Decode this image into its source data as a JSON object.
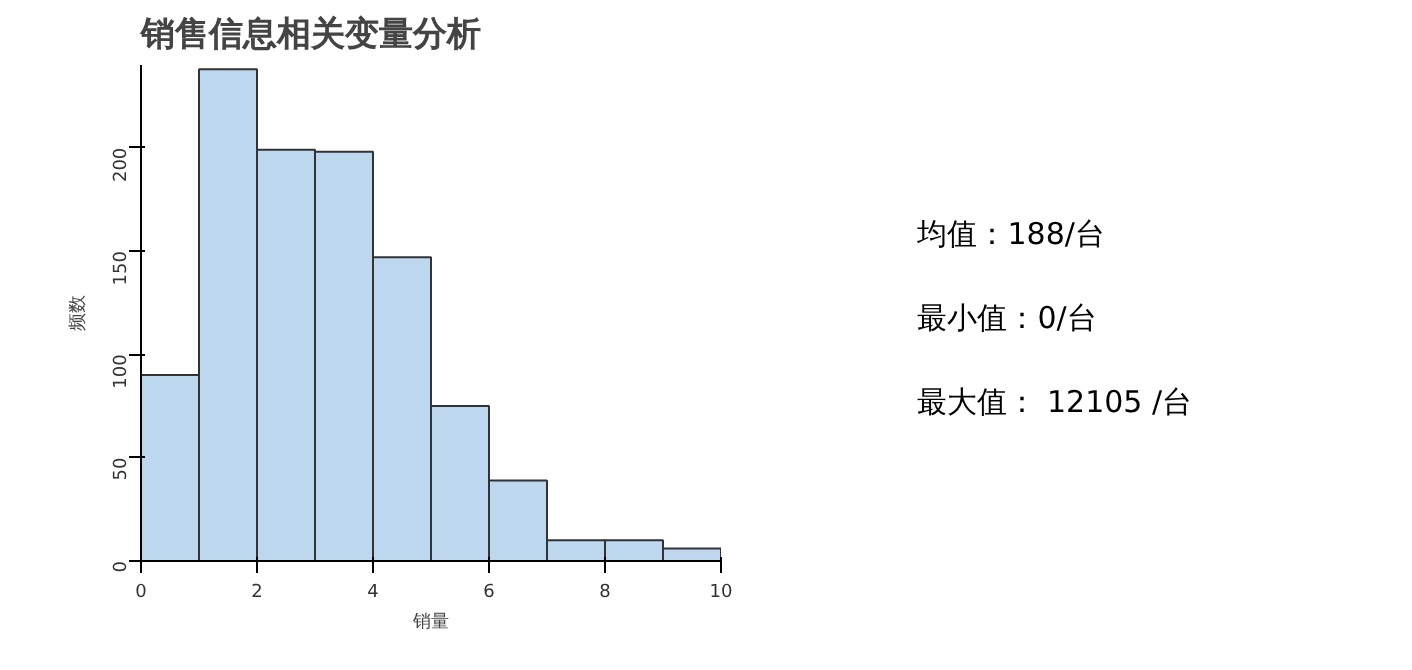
{
  "chart_data": {
    "type": "histogram",
    "title": "销售信息相关变量分析",
    "xlabel": "销量",
    "ylabel": "频数",
    "bins": [
      0,
      1,
      2,
      3,
      4,
      5,
      6,
      7,
      8,
      9,
      10
    ],
    "values": [
      90,
      238,
      199,
      198,
      147,
      75,
      39,
      10,
      10,
      6
    ],
    "color": "#bdd7ee",
    "xlim": [
      0,
      10
    ],
    "ylim": [
      0,
      240
    ],
    "xticks": [
      0,
      2,
      4,
      6,
      8,
      10
    ],
    "yticks": [
      0,
      50,
      100,
      150,
      200
    ],
    "grid": false,
    "annotations": [
      "均值：188/台",
      "最小值：0/台",
      "最大值： 12105 /台"
    ]
  }
}
